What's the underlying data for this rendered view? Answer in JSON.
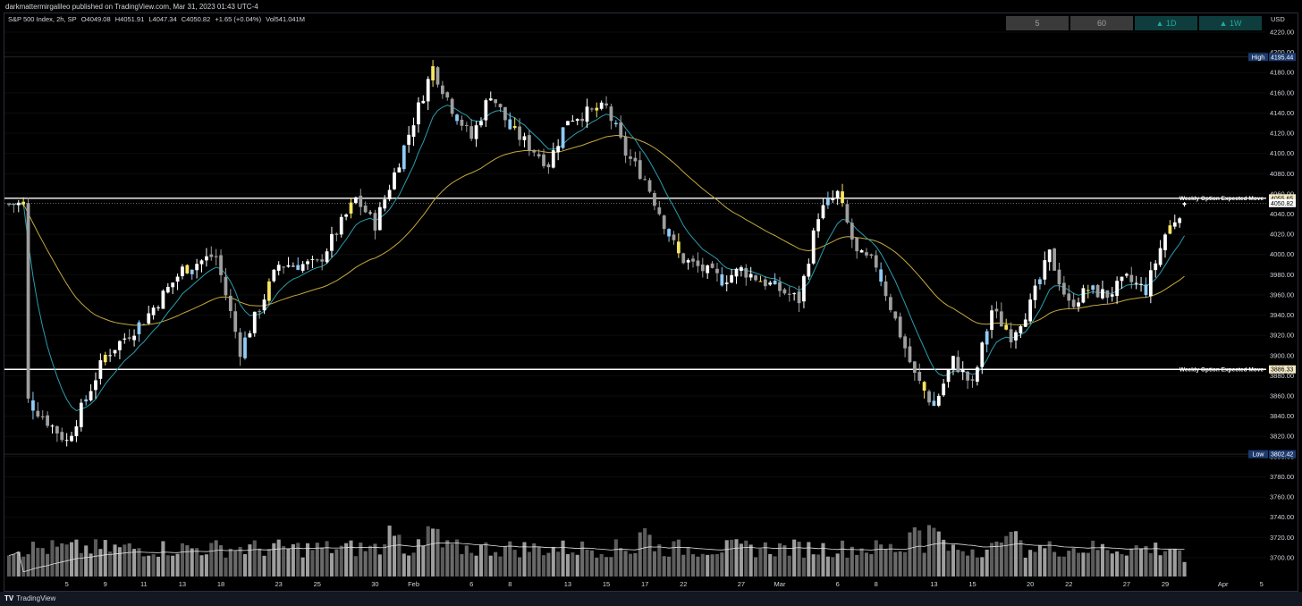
{
  "header": {
    "publisher": "darkmattermirgalileo published on TradingView.com, Mar 31, 2023 01:43 UTC-4"
  },
  "symbol": {
    "name": "S&P 500 Index, 2h, SP",
    "open": "O4049.08",
    "high": "H4051.91",
    "low": "L4047.34",
    "close": "C4050.82",
    "change": "+1.65 (+0.04%)",
    "volume": "Vol541.041M"
  },
  "timeframes": [
    {
      "label": "5",
      "style": "gray"
    },
    {
      "label": "60",
      "style": "gray"
    },
    {
      "label": "▲ 1D",
      "style": "teal"
    },
    {
      "label": "▲ 1W",
      "style": "teal"
    }
  ],
  "currency": "USD",
  "brand": "TradingView",
  "brand_logo": "TV",
  "colors": {
    "background": "#000000",
    "bull_candle": "#ffffff",
    "bear_candle": "#9e9e9e",
    "blue_candle": "#8fcbf5",
    "yellow_candle": "#f7e463",
    "ema_fast": "#2a9db0",
    "ema_slow": "#c4a73d",
    "levels": "#ffffff",
    "high_tag": "#1c3a6e"
  },
  "chart_data": {
    "type": "candlestick",
    "title": "S&P 500 Index, 2h, SP",
    "y_ticks": [
      4220,
      4200,
      4180,
      4160,
      4140,
      4120,
      4100,
      4080,
      4060,
      4040,
      4020,
      4000,
      3980,
      3960,
      3940,
      3920,
      3900,
      3880,
      3860,
      3840,
      3820,
      3800,
      3780,
      3760,
      3740,
      3720,
      3700
    ],
    "y_tick_labels": [
      "4220.00",
      "4200.00",
      "4180.00",
      "4160.00",
      "4140.00",
      "4120.00",
      "4100.00",
      "4080.00",
      "4060.00",
      "4040.00",
      "4020.00",
      "4000.00",
      "3980.00",
      "3960.00",
      "3940.00",
      "3920.00",
      "3900.00",
      "3880.00",
      "3860.00",
      "3840.00",
      "3820.00",
      "3800.00",
      "3780.00",
      "3760.00",
      "3740.00",
      "3720.00",
      "3700.00"
    ],
    "x_tick_labels": [
      "5",
      "9",
      "11",
      "13",
      "18",
      "23",
      "25",
      "30",
      "Feb",
      "6",
      "8",
      "13",
      "15",
      "17",
      "22",
      "27",
      "Mar",
      "6",
      "8",
      "13",
      "15",
      "20",
      "22",
      "27",
      "29",
      "Apr",
      "5"
    ],
    "range_markers": [
      {
        "label": "High",
        "value": "4195.44",
        "price": 4195.44
      },
      {
        "label": "Low",
        "value": "3802.42",
        "price": 3802.42
      }
    ],
    "levels": [
      {
        "name": "Weekly Option Expected Move",
        "price": 4055.65,
        "value_label": "4055.65"
      },
      {
        "name": "Weekly Option Expected Move",
        "price": 3886.33,
        "value_label": "3886.33"
      }
    ],
    "last_price": {
      "price": 4050.82,
      "label": "4050.82"
    },
    "anchors": [
      {
        "date": "Jan 3",
        "price": 3855
      },
      {
        "date": "Jan 5",
        "price": 3815
      },
      {
        "date": "Jan 9",
        "price": 3900
      },
      {
        "date": "Jan 11",
        "price": 3935
      },
      {
        "date": "Jan 13",
        "price": 3985
      },
      {
        "date": "Jan 17",
        "price": 4000
      },
      {
        "date": "Jan 19",
        "price": 3905
      },
      {
        "date": "Jan 23",
        "price": 3990
      },
      {
        "date": "Jan 25",
        "price": 3990
      },
      {
        "date": "Jan 27",
        "price": 4055
      },
      {
        "date": "Jan 30",
        "price": 4030
      },
      {
        "date": "Jan 31",
        "price": 4080
      },
      {
        "date": "Feb 2",
        "price": 4185
      },
      {
        "date": "Feb 3",
        "price": 4145
      },
      {
        "date": "Feb 6",
        "price": 4115
      },
      {
        "date": "Feb 7",
        "price": 4160
      },
      {
        "date": "Feb 8",
        "price": 4125
      },
      {
        "date": "Feb 10",
        "price": 4090
      },
      {
        "date": "Feb 13",
        "price": 4135
      },
      {
        "date": "Feb 15",
        "price": 4145
      },
      {
        "date": "Feb 16",
        "price": 4100
      },
      {
        "date": "Feb 17",
        "price": 4075
      },
      {
        "date": "Feb 21",
        "price": 4000
      },
      {
        "date": "Feb 22",
        "price": 3995
      },
      {
        "date": "Feb 24",
        "price": 3975
      },
      {
        "date": "Feb 27",
        "price": 3985
      },
      {
        "date": "Mar 2",
        "price": 3955
      },
      {
        "date": "Mar 3",
        "price": 4040
      },
      {
        "date": "Mar 6",
        "price": 4060
      },
      {
        "date": "Mar 7",
        "price": 4000
      },
      {
        "date": "Mar 8",
        "price": 3990
      },
      {
        "date": "Mar 10",
        "price": 3880
      },
      {
        "date": "Mar 13",
        "price": 3850
      },
      {
        "date": "Mar 14",
        "price": 3895
      },
      {
        "date": "Mar 15",
        "price": 3870
      },
      {
        "date": "Mar 16",
        "price": 3945
      },
      {
        "date": "Mar 17",
        "price": 3920
      },
      {
        "date": "Mar 20",
        "price": 3950
      },
      {
        "date": "Mar 21",
        "price": 4000
      },
      {
        "date": "Mar 22",
        "price": 3950
      },
      {
        "date": "Mar 23",
        "price": 3965
      },
      {
        "date": "Mar 24",
        "price": 3960
      },
      {
        "date": "Mar 27",
        "price": 3975
      },
      {
        "date": "Mar 28",
        "price": 3965
      },
      {
        "date": "Mar 29",
        "price": 4020
      },
      {
        "date": "Mar 30",
        "price": 4050
      }
    ],
    "volume_spike_dates": [
      "Jan 31",
      "Feb 2",
      "Feb 17",
      "Mar 10",
      "Mar 13",
      "Mar 17"
    ]
  }
}
